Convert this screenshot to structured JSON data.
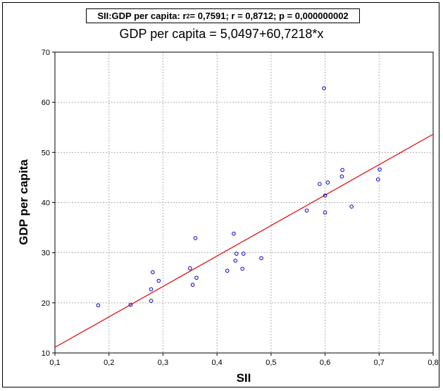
{
  "chart_data": {
    "type": "scatter",
    "stats_line": {
      "prefix": "SII:GDP per capita:  r",
      "superscript": "2",
      "suffix": " = 0,7591;  r = 0,8712;  p = 0,000000002"
    },
    "equation": "GDP per capita = 5,0497+60,7218*x",
    "regression": {
      "intercept": 5.0497,
      "slope": 60.7218
    },
    "xlabel": "SII",
    "ylabel": "GDP per capita",
    "xlim": [
      0.1,
      0.8
    ],
    "ylim": [
      10,
      70
    ],
    "x_ticks": [
      0.1,
      0.2,
      0.3,
      0.4,
      0.5,
      0.6,
      0.7,
      0.8
    ],
    "x_tick_labels": [
      "0,1",
      "0,2",
      "0,3",
      "0,4",
      "0,5",
      "0,6",
      "0,7",
      "0,8"
    ],
    "y_ticks": [
      10,
      20,
      30,
      40,
      50,
      60,
      70
    ],
    "y_tick_labels": [
      "10",
      "20",
      "30",
      "40",
      "50",
      "60",
      "70"
    ],
    "grid": true,
    "points": [
      {
        "x": 0.18,
        "y": 19.5
      },
      {
        "x": 0.24,
        "y": 19.6
      },
      {
        "x": 0.278,
        "y": 20.4
      },
      {
        "x": 0.278,
        "y": 22.7
      },
      {
        "x": 0.281,
        "y": 26.1
      },
      {
        "x": 0.292,
        "y": 24.4
      },
      {
        "x": 0.35,
        "y": 26.9
      },
      {
        "x": 0.355,
        "y": 23.6
      },
      {
        "x": 0.36,
        "y": 32.9
      },
      {
        "x": 0.362,
        "y": 25.0
      },
      {
        "x": 0.419,
        "y": 26.4
      },
      {
        "x": 0.431,
        "y": 33.8
      },
      {
        "x": 0.434,
        "y": 28.4
      },
      {
        "x": 0.436,
        "y": 29.8
      },
      {
        "x": 0.447,
        "y": 26.8
      },
      {
        "x": 0.449,
        "y": 29.8
      },
      {
        "x": 0.482,
        "y": 28.9
      },
      {
        "x": 0.566,
        "y": 38.4
      },
      {
        "x": 0.59,
        "y": 43.7
      },
      {
        "x": 0.598,
        "y": 62.8
      },
      {
        "x": 0.6,
        "y": 41.4
      },
      {
        "x": 0.6,
        "y": 38.0
      },
      {
        "x": 0.605,
        "y": 44.0
      },
      {
        "x": 0.631,
        "y": 45.2
      },
      {
        "x": 0.632,
        "y": 46.5
      },
      {
        "x": 0.649,
        "y": 39.2
      },
      {
        "x": 0.698,
        "y": 44.6
      },
      {
        "x": 0.701,
        "y": 46.6
      }
    ],
    "colors": {
      "points": "#0000cc",
      "line": "#e00000",
      "grid": "#b0b0b0"
    }
  }
}
